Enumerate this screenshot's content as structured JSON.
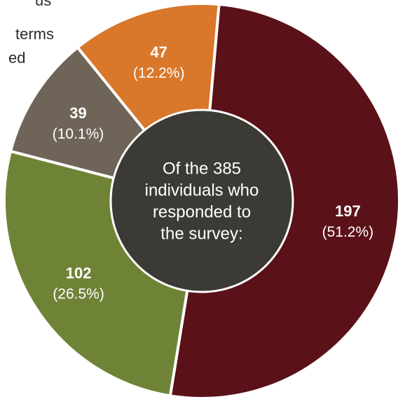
{
  "background_text": {
    "lines": [
      "us",
      "terms",
      "ed",
      ""
    ]
  },
  "chart_data": {
    "type": "pie",
    "variant": "donut",
    "center_label": [
      "Of the 385",
      "individuals who",
      "responded to",
      "the survey:"
    ],
    "series": [
      {
        "values": [
          197,
          102,
          39,
          47
        ],
        "value_labels": [
          "197",
          "102",
          "39",
          "47"
        ],
        "percent_labels": [
          "(51.2%)",
          "(26.5%)",
          "(10.1%)",
          "(12.2%)"
        ],
        "colors": [
          "#5a1118",
          "#6f8337",
          "#6f6458",
          "#d9772a"
        ]
      }
    ],
    "total": 385
  },
  "colors": {
    "center_fill": "#3c3a35",
    "slice_separator": "#ffffff",
    "label_text": "#ffffff"
  }
}
